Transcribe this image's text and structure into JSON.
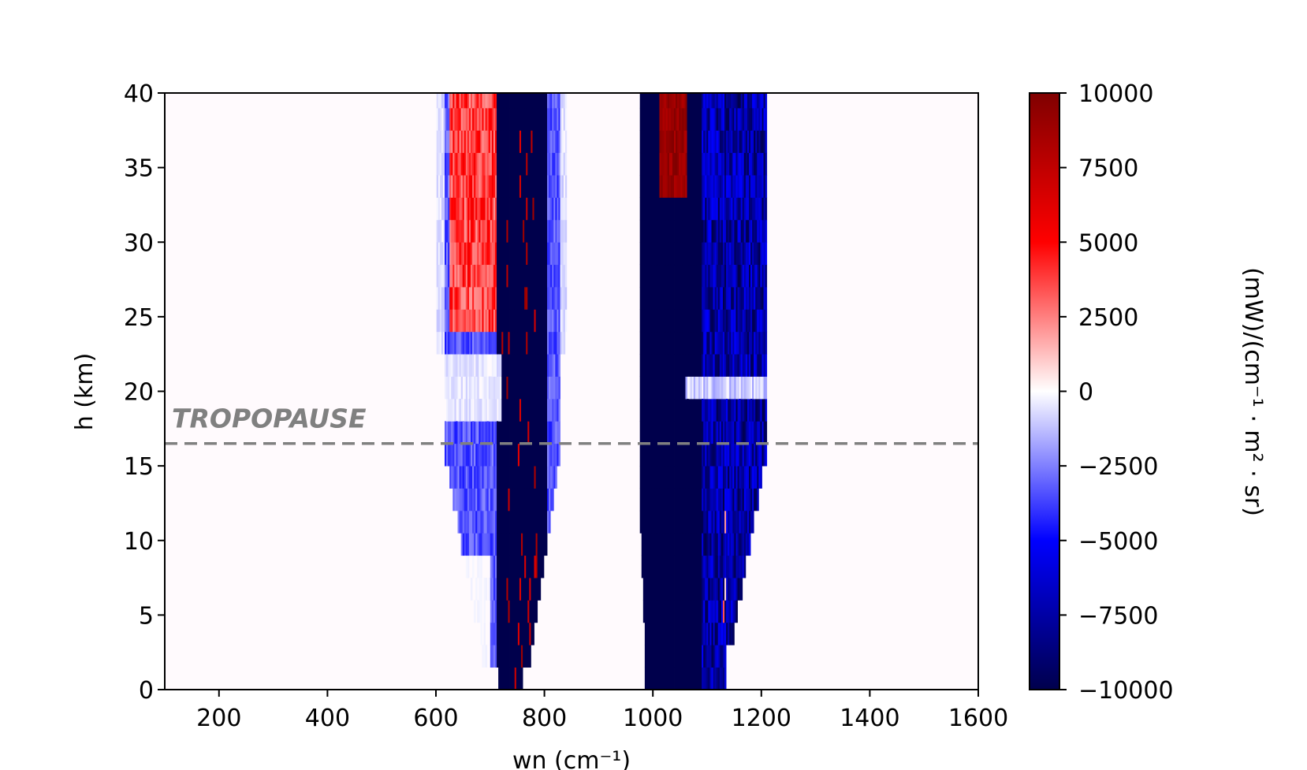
{
  "chart_data": {
    "type": "heatmap",
    "title": "",
    "xlabel": "wn (cm⁻¹)",
    "ylabel": "h (km)",
    "colorbar_label": "(mW)/(cm⁻¹ · m² · sr)",
    "xlim": [
      100,
      1600
    ],
    "ylim": [
      0,
      40
    ],
    "xticks": [
      "200",
      "400",
      "600",
      "800",
      "1000",
      "1200",
      "1400",
      "1600"
    ],
    "yticks": [
      "0",
      "5",
      "10",
      "15",
      "20",
      "25",
      "30",
      "35",
      "40"
    ],
    "colorbar": {
      "cmap": "seismic",
      "range": [
        -10000,
        10000
      ],
      "ticks": [
        "−10000",
        "−7500",
        "−5000",
        "−2500",
        "0",
        "2500",
        "5000",
        "7500",
        "10000"
      ],
      "colors": [
        "#00004c",
        "#0000ff",
        "#ffffff",
        "#ff0000",
        "#800000"
      ]
    },
    "annotation": {
      "text": "TROPOPAUSE",
      "line_y": 16.5,
      "color": "#808080",
      "style": "dashed"
    },
    "regions": [
      {
        "name": "band 600-850 negative",
        "x": [
          630,
          820
        ],
        "y": [
          0,
          40
        ],
        "value": -9000
      },
      {
        "name": "band 620-700 positive upper",
        "x": [
          620,
          710
        ],
        "y": [
          24,
          40
        ],
        "value": 4000
      },
      {
        "name": "band 970-1200 negative",
        "x": [
          970,
          1210
        ],
        "y": [
          0,
          40
        ],
        "value": -10000
      },
      {
        "name": "band 1010-1060 positive top",
        "x": [
          1010,
          1065
        ],
        "y": [
          33,
          40
        ],
        "value": 9000
      }
    ]
  }
}
